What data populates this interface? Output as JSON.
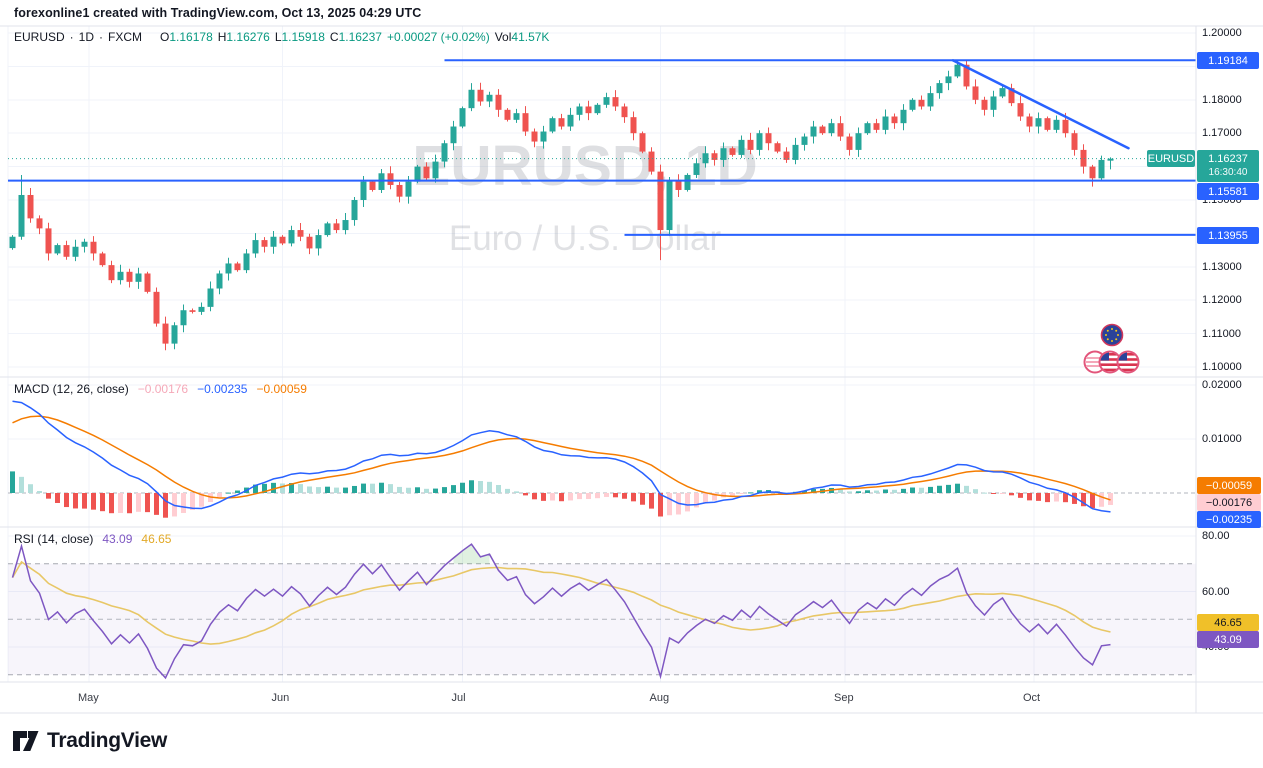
{
  "header": {
    "title": "forexonline1 created with TradingView.com, Oct 13, 2025 04:29 UTC"
  },
  "legend": {
    "symbol": "EURUSD",
    "sep": "·",
    "timeframe": "1D",
    "exchange": "FXCM",
    "o_label": "O",
    "o": "1.16178",
    "h_label": "H",
    "h": "1.16276",
    "l_label": "L",
    "l": "1.15918",
    "c_label": "C",
    "c": "1.16237",
    "change": "+0.00027 (+0.02%)",
    "vol_label": "Vol",
    "vol": "41.57K"
  },
  "watermark": {
    "line1": "EURUSD, 1D",
    "line2": "Euro / U.S. Dollar"
  },
  "badges": {
    "symbol": "EURUSD",
    "last_price": "1.16237",
    "countdown": "16:30:40",
    "level_high": "1.19184",
    "support": "1.15581",
    "lower": "1.13955",
    "macd_signal": "−0.00059",
    "macd_hist": "−0.00176",
    "macd_line": "−0.00235",
    "rsi_ma": "46.65",
    "rsi": "43.09"
  },
  "macd_legend": {
    "title": "MACD (12, 26, close)",
    "hist": "−0.00176",
    "macd": "−0.00235",
    "signal": "−0.00059"
  },
  "rsi_legend": {
    "title": "RSI (14, close)",
    "value": "43.09",
    "ma": "46.65"
  },
  "footer": {
    "brand": "TradingView"
  },
  "chart_data": {
    "type": "candlestick",
    "symbol": "EURUSD",
    "interval": "1D",
    "exchange": "FXCM",
    "last": {
      "open": 1.16178,
      "high": 1.16276,
      "low": 1.15918,
      "close": 1.16237,
      "change": 0.00027,
      "change_pct": 0.02,
      "volume": "41.57K"
    },
    "price_axis_ticks": [
      {
        "label": "1.20000",
        "value": 1.2
      },
      {
        "label": "1.18000",
        "value": 1.18
      },
      {
        "label": "1.17000",
        "value": 1.17
      },
      {
        "label": "1.15000",
        "value": 1.15
      },
      {
        "label": "1.13000",
        "value": 1.13
      },
      {
        "label": "1.12000",
        "value": 1.12
      },
      {
        "label": "1.11000",
        "value": 1.11
      },
      {
        "label": "1.10000",
        "value": 1.1
      }
    ],
    "grid_price_range": {
      "min": 1.1,
      "max": 1.2,
      "step": 0.01
    },
    "months": [
      {
        "label": "May",
        "index": 9
      },
      {
        "label": "Jun",
        "index": 30.5
      },
      {
        "label": "Jul",
        "index": 50.5
      },
      {
        "label": "Aug",
        "index": 72.5
      },
      {
        "label": "Sep",
        "index": 93
      },
      {
        "label": "Oct",
        "index": 114
      }
    ],
    "first_open": 1.1356,
    "closes": [
      1.139,
      1.1515,
      1.1445,
      1.1415,
      1.134,
      1.1365,
      1.133,
      1.136,
      1.1375,
      1.134,
      1.1305,
      1.126,
      1.1285,
      1.1255,
      1.128,
      1.1225,
      1.113,
      1.107,
      1.1125,
      1.117,
      1.1165,
      1.118,
      1.1235,
      1.128,
      1.131,
      1.129,
      1.134,
      1.138,
      1.136,
      1.139,
      1.137,
      1.141,
      1.139,
      1.1355,
      1.1395,
      1.143,
      1.141,
      1.144,
      1.15,
      1.1555,
      1.153,
      1.158,
      1.1545,
      1.151,
      1.1555,
      1.16,
      1.1565,
      1.1615,
      1.167,
      1.172,
      1.1775,
      1.183,
      1.1795,
      1.1815,
      1.177,
      1.174,
      1.176,
      1.1705,
      1.1675,
      1.1705,
      1.1745,
      1.172,
      1.1755,
      1.178,
      1.176,
      1.1785,
      1.1808,
      1.178,
      1.1748,
      1.17,
      1.1645,
      1.1585,
      1.141,
      1.156,
      1.153,
      1.1575,
      1.161,
      1.164,
      1.162,
      1.1655,
      1.1635,
      1.168,
      1.165,
      1.17,
      1.167,
      1.1645,
      1.162,
      1.1665,
      1.169,
      1.172,
      1.17,
      1.173,
      1.169,
      1.165,
      1.17,
      1.173,
      1.171,
      1.175,
      1.173,
      1.177,
      1.18,
      1.178,
      1.182,
      1.185,
      1.187,
      1.1905,
      1.184,
      1.18,
      1.177,
      1.181,
      1.1835,
      1.179,
      1.175,
      1.172,
      1.1745,
      1.171,
      1.174,
      1.17,
      1.165,
      1.16,
      1.1565,
      1.162,
      1.16237
    ],
    "special": {
      "0": {
        "o": 1.1356
      },
      "1": {
        "h": 1.1575
      },
      "17": {
        "l": 1.105
      },
      "51": {
        "h": 1.185
      },
      "72": {
        "l": 1.132
      },
      "105": {
        "h": 1.19184
      },
      "120": {
        "l": 1.154
      },
      "122": {
        "o": 1.16178,
        "h": 1.16276,
        "l": 1.15918,
        "c": 1.16237
      }
    },
    "levels": [
      {
        "value": 1.19184,
        "from_index": 48.5
      },
      {
        "value": 1.15581,
        "from_index": 0
      },
      {
        "value": 1.13955,
        "from_index": 68.5
      }
    ],
    "trendline": {
      "from_index": 104.5,
      "from_price": 1.1918,
      "to_index": 124,
      "to_price": 1.1655
    },
    "last_price_line": 1.16237,
    "indicators": {
      "macd": {
        "fast": 12,
        "slow": 26,
        "signal_len": 9,
        "seed_macd": 0.017,
        "seed_signal": 0.013,
        "last_hist": -0.00176,
        "last_macd": -0.00235,
        "last_signal": -0.00059,
        "axis_ticks": [
          {
            "label": "0.02000",
            "value": 0.02
          },
          {
            "label": "0.01000",
            "value": 0.01
          }
        ]
      },
      "rsi": {
        "length": 14,
        "seed": 65,
        "last": 43.09,
        "ma_last": 46.65,
        "overbought": 70,
        "mid": 50,
        "oversold": 30,
        "axis_ticks": [
          {
            "label": "80.00",
            "value": 80
          },
          {
            "label": "60.00",
            "value": 60
          },
          {
            "label": "40.00",
            "value": 40
          }
        ]
      }
    },
    "colors": {
      "up": "#26A69A",
      "down": "#EF5350",
      "level_blue": "#2962FF",
      "trend_blue": "#2962FF",
      "macd_line": "#2962FF",
      "signal_line": "#F57C00",
      "hist_up": "#26A69A",
      "hist_up_weak": "#B2DFDB",
      "hist_down": "#EF5350",
      "hist_down_weak": "#FFCDD2",
      "rsi_line": "#7E57C2",
      "rsi_ma": "#E8C766",
      "rsi_band": "#7E57C2",
      "overbought_fill": "#66BB6A",
      "grid": "#F0F3FA",
      "divider": "#E0E3EB",
      "dashed": "#8A8D98",
      "watermark": "#8C9099",
      "last_price_dotted": "#26A69A"
    }
  }
}
